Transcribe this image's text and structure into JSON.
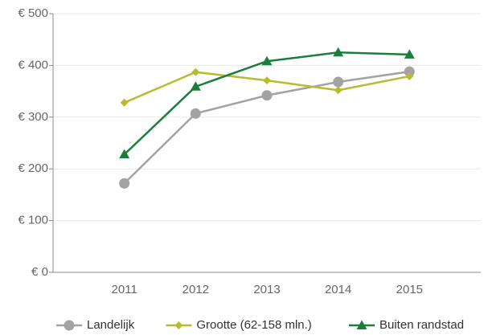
{
  "chart_data": {
    "type": "line",
    "categories": [
      "2011",
      "2012",
      "2013",
      "2014",
      "2015"
    ],
    "series": [
      {
        "name": "Landelijk",
        "color": "#a3a3a3",
        "marker": "circle",
        "values": [
          172,
          307,
          342,
          368,
          388
        ]
      },
      {
        "name": "Grootte (62-158 mln.)",
        "color": "#b5bd2e",
        "marker": "diamond",
        "values": [
          328,
          387,
          371,
          352,
          379
        ]
      },
      {
        "name": "Buiten randstad",
        "color": "#1a7f3a",
        "marker": "triangle",
        "values": [
          228,
          359,
          408,
          425,
          421
        ]
      }
    ],
    "ylim": [
      0,
      500
    ],
    "yticks": [
      {
        "value": 0,
        "label": "€ 0"
      },
      {
        "value": 100,
        "label": "€ 100"
      },
      {
        "value": 200,
        "label": "€ 200"
      },
      {
        "value": 300,
        "label": "€ 300"
      },
      {
        "value": 400,
        "label": "€ 400"
      },
      {
        "value": 500,
        "label": "€ 500"
      }
    ],
    "grid": true,
    "legend": "bottom"
  }
}
